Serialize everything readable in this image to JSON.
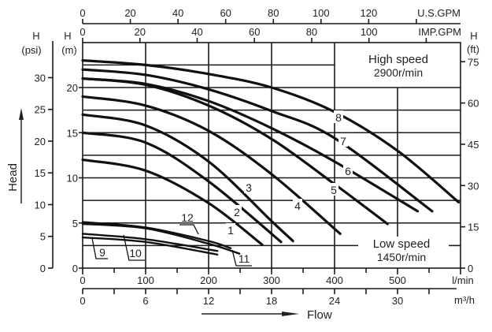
{
  "chart_data": {
    "type": "line",
    "xlabel": "Flow",
    "ylabel": "Head",
    "x_unit": "l/min",
    "x_range": [
      0,
      600
    ],
    "y_unit_left": "H (m)",
    "y_range": [
      0,
      25
    ],
    "grid": true,
    "x_ticks": [
      "0",
      "100",
      "200",
      "300",
      "400",
      "500"
    ],
    "x_unit_label": "l/min",
    "x2_ticks": [
      "0",
      "6",
      "12",
      "18",
      "24",
      "30"
    ],
    "x2_unit_label": "m³/h",
    "us_gpm_ticks": [
      "0",
      "20",
      "40",
      "60",
      "80",
      "100",
      "120"
    ],
    "us_gpm_label": "U.S.GPM",
    "imp_gpm_ticks": [
      "0",
      "20",
      "40",
      "60",
      "80",
      "100"
    ],
    "imp_gpm_label": "IMP.GPM",
    "m_ticks": [
      "0",
      "5",
      "10",
      "15",
      "20"
    ],
    "m_label_h": "H",
    "m_label_unit": "(m)",
    "psi_ticks": [
      "0",
      "5",
      "10",
      "15",
      "20",
      "25",
      "30"
    ],
    "psi_label_h": "H",
    "psi_label_unit": "(psi)",
    "ft_ticks": [
      "0",
      "15",
      "30",
      "45",
      "60",
      "75"
    ],
    "ft_label_h": "H",
    "ft_label_unit": "(ft)",
    "high_speed": {
      "title": "High speed",
      "rpm": "2900r/min"
    },
    "low_speed": {
      "title": "Low speed",
      "rpm": "1450r/min"
    },
    "series": [
      {
        "name": "1",
        "points": [
          [
            0,
            12
          ],
          [
            100,
            10.8
          ],
          [
            200,
            7.2
          ],
          [
            285,
            2.6
          ]
        ]
      },
      {
        "name": "2",
        "points": [
          [
            0,
            15
          ],
          [
            100,
            13.9
          ],
          [
            200,
            9.6
          ],
          [
            315,
            2.9
          ]
        ]
      },
      {
        "name": "3",
        "points": [
          [
            0,
            17
          ],
          [
            100,
            15.8
          ],
          [
            200,
            11.8
          ],
          [
            300,
            5.2
          ],
          [
            334,
            3.0
          ]
        ]
      },
      {
        "name": "4",
        "points": [
          [
            0,
            19
          ],
          [
            100,
            18
          ],
          [
            200,
            15.2
          ],
          [
            300,
            10.4
          ],
          [
            409,
            3.8
          ]
        ]
      },
      {
        "name": "5",
        "points": [
          [
            0,
            21
          ],
          [
            100,
            20.3
          ],
          [
            200,
            18
          ],
          [
            300,
            14.3
          ],
          [
            400,
            9.3
          ],
          [
            484,
            4.9
          ]
        ]
      },
      {
        "name": "6",
        "points": [
          [
            0,
            21
          ],
          [
            100,
            20.4
          ],
          [
            200,
            18.5
          ],
          [
            300,
            15.5
          ],
          [
            400,
            11.8
          ],
          [
            532,
            6.3
          ]
        ]
      },
      {
        "name": "7",
        "points": [
          [
            0,
            22
          ],
          [
            100,
            21.4
          ],
          [
            200,
            19.8
          ],
          [
            300,
            17.4
          ],
          [
            400,
            14.4
          ],
          [
            555,
            6.3
          ]
        ]
      },
      {
        "name": "8",
        "points": [
          [
            0,
            23
          ],
          [
            100,
            22.5
          ],
          [
            200,
            21.5
          ],
          [
            300,
            20
          ],
          [
            400,
            17.3
          ],
          [
            500,
            13
          ],
          [
            597,
            7.3
          ]
        ]
      },
      {
        "name": "9",
        "points": [
          [
            0,
            3.4
          ],
          [
            100,
            2.9
          ],
          [
            214,
            1.5
          ]
        ]
      },
      {
        "name": "10",
        "points": [
          [
            0,
            3.8
          ],
          [
            100,
            3.2
          ],
          [
            214,
            1.9
          ]
        ]
      },
      {
        "name": "11",
        "points": [
          [
            0,
            4.9
          ],
          [
            100,
            4.4
          ],
          [
            200,
            2.7
          ],
          [
            249,
            1.6
          ]
        ]
      },
      {
        "name": "12",
        "points": [
          [
            0,
            5.1
          ],
          [
            100,
            4.5
          ],
          [
            200,
            3.0
          ],
          [
            235,
            2.2
          ]
        ]
      }
    ]
  }
}
